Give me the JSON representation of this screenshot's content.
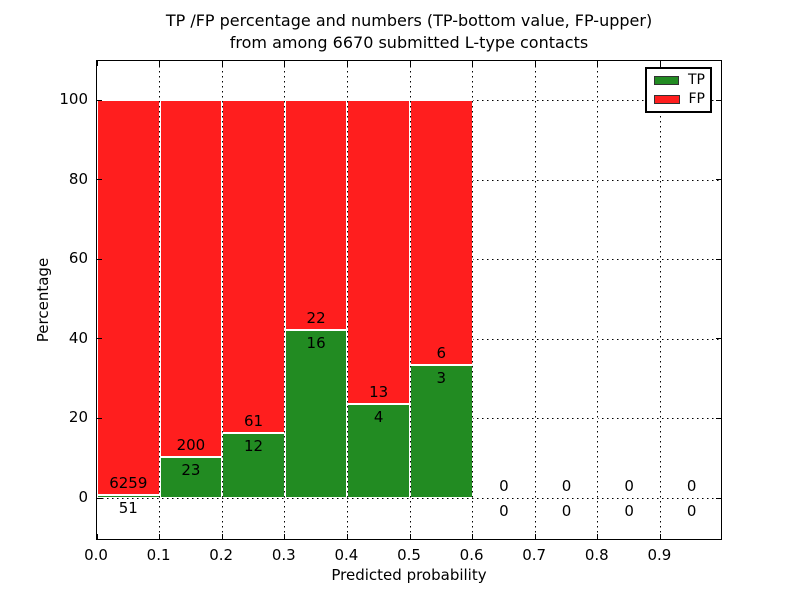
{
  "title": {
    "line1": "TP /FP percentage and numbers (TP-bottom value, FP-upper)",
    "line2": "from among 6670 submitted L-type contacts"
  },
  "chart_data": {
    "type": "bar",
    "stacked": true,
    "normalized": "each non-empty bin stacks to 100%",
    "title": "TP /FP percentage and numbers (TP-bottom value, FP-upper) from among 6670 submitted L-type contacts",
    "xlabel": "Predicted probability",
    "ylabel": "Percentage",
    "total_submitted": 6670,
    "bin_starts": [
      0.0,
      0.1,
      0.2,
      0.3,
      0.4,
      0.5,
      0.6,
      0.7,
      0.8,
      0.9
    ],
    "bin_width": 0.1,
    "series": [
      {
        "name": "TP",
        "color": "#228b22",
        "counts": [
          51,
          23,
          12,
          16,
          4,
          3,
          0,
          0,
          0,
          0
        ]
      },
      {
        "name": "FP",
        "color": "#ff1e1e",
        "counts": [
          6259,
          200,
          61,
          22,
          13,
          6,
          0,
          0,
          0,
          0
        ]
      }
    ],
    "tp_percent_est": [
      0.8,
      10.3,
      16.4,
      42.1,
      23.5,
      33.3,
      0,
      0,
      0,
      0
    ],
    "xticks": [
      "0.0",
      "0.1",
      "0.2",
      "0.3",
      "0.4",
      "0.5",
      "0.6",
      "0.7",
      "0.8",
      "0.9"
    ],
    "yticks": [
      0,
      20,
      40,
      60,
      80,
      100
    ],
    "xlim": [
      0.0,
      1.0
    ],
    "ylim": [
      -11,
      110
    ],
    "grid": "dotted",
    "legend": {
      "position": "upper right",
      "entries": [
        {
          "label": "TP",
          "color": "#228b22"
        },
        {
          "label": "FP",
          "color": "#ff1e1e"
        }
      ]
    }
  }
}
